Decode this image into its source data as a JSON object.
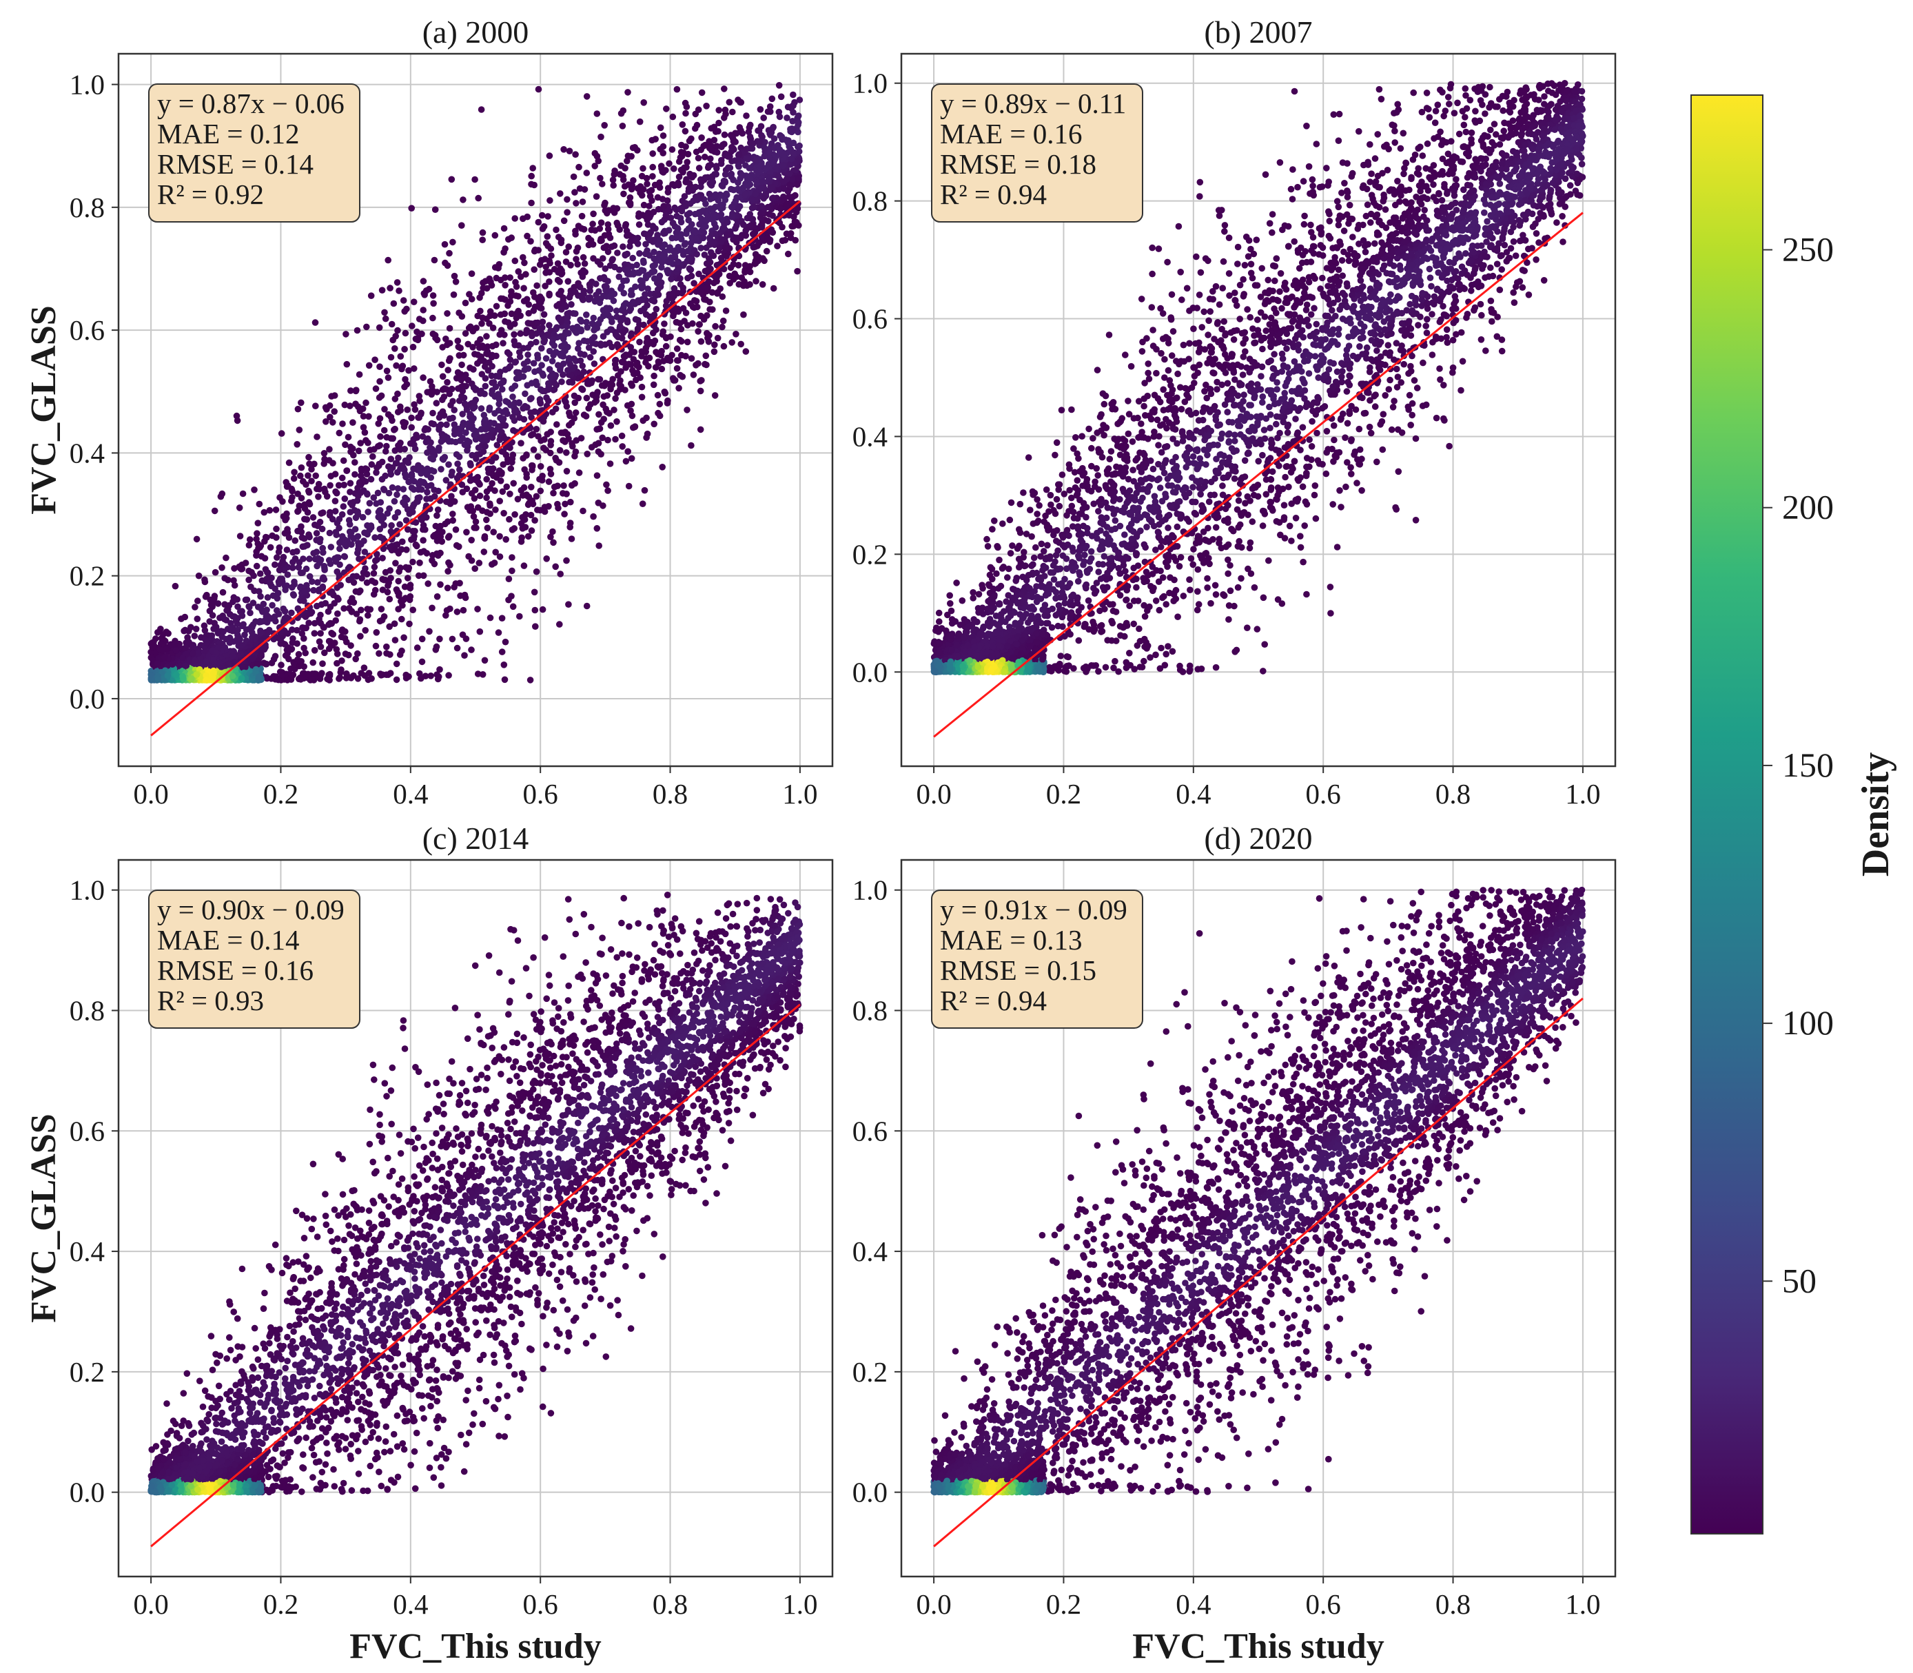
{
  "chart_data": [
    {
      "type": "scatter",
      "title": "(a) 2000",
      "xlabel": "",
      "ylabel": "FVC_GLASS",
      "xlim": [
        -0.05,
        1.05
      ],
      "ylim": [
        -0.11,
        1.05
      ],
      "xticks": [
        0.0,
        0.2,
        0.4,
        0.6,
        0.8,
        1.0
      ],
      "xtick_labels": [
        "0.0",
        "0.2",
        "0.4",
        "0.6",
        "0.8",
        "1.0"
      ],
      "yticks": [
        0.0,
        0.2,
        0.4,
        0.6,
        0.8,
        1.0
      ],
      "ytick_labels": [
        "0.0",
        "0.2",
        "0.4",
        "0.6",
        "0.8",
        "1.0"
      ],
      "grid": true,
      "fit": {
        "slope": 0.87,
        "intercept": -0.06
      },
      "y_floor": 0.03,
      "stats": [
        "y = 0.87x − 0.06",
        "MAE = 0.12",
        "RMSE = 0.14",
        "R² = 0.92"
      ]
    },
    {
      "type": "scatter",
      "title": "(b) 2007",
      "xlabel": "",
      "ylabel": "",
      "xlim": [
        -0.05,
        1.05
      ],
      "ylim": [
        -0.16,
        1.05
      ],
      "xticks": [
        0.0,
        0.2,
        0.4,
        0.6,
        0.8,
        1.0
      ],
      "xtick_labels": [
        "0.0",
        "0.2",
        "0.4",
        "0.6",
        "0.8",
        "1.0"
      ],
      "yticks": [
        0.0,
        0.2,
        0.4,
        0.6,
        0.8,
        1.0
      ],
      "ytick_labels": [
        "0.0",
        "0.2",
        "0.4",
        "0.6",
        "0.8",
        "1.0"
      ],
      "grid": true,
      "fit": {
        "slope": 0.89,
        "intercept": -0.11
      },
      "y_floor": 0.0,
      "stats": [
        "y = 0.89x − 0.11",
        "MAE = 0.16",
        "RMSE = 0.18",
        "R² = 0.94"
      ]
    },
    {
      "type": "scatter",
      "title": "(c) 2014",
      "xlabel": "FVC_This study",
      "ylabel": "FVC_GLASS",
      "xlim": [
        -0.05,
        1.05
      ],
      "ylim": [
        -0.14,
        1.05
      ],
      "xticks": [
        0.0,
        0.2,
        0.4,
        0.6,
        0.8,
        1.0
      ],
      "xtick_labels": [
        "0.0",
        "0.2",
        "0.4",
        "0.6",
        "0.8",
        "1.0"
      ],
      "yticks": [
        0.0,
        0.2,
        0.4,
        0.6,
        0.8,
        1.0
      ],
      "ytick_labels": [
        "0.0",
        "0.2",
        "0.4",
        "0.6",
        "0.8",
        "1.0"
      ],
      "grid": true,
      "fit": {
        "slope": 0.9,
        "intercept": -0.09
      },
      "y_floor": 0.0,
      "stats": [
        "y = 0.90x − 0.09",
        "MAE = 0.14",
        "RMSE = 0.16",
        "R² = 0.93"
      ]
    },
    {
      "type": "scatter",
      "title": "(d) 2020",
      "xlabel": "FVC_This study",
      "ylabel": "",
      "xlim": [
        -0.05,
        1.05
      ],
      "ylim": [
        -0.14,
        1.05
      ],
      "xticks": [
        0.0,
        0.2,
        0.4,
        0.6,
        0.8,
        1.0
      ],
      "xtick_labels": [
        "0.0",
        "0.2",
        "0.4",
        "0.6",
        "0.8",
        "1.0"
      ],
      "yticks": [
        0.0,
        0.2,
        0.4,
        0.6,
        0.8,
        1.0
      ],
      "ytick_labels": [
        "0.0",
        "0.2",
        "0.4",
        "0.6",
        "0.8",
        "1.0"
      ],
      "grid": true,
      "fit": {
        "slope": 0.91,
        "intercept": -0.09
      },
      "y_floor": 0.0,
      "stats": [
        "y = 0.91x − 0.09",
        "MAE = 0.13",
        "RMSE = 0.15",
        "R² = 0.94"
      ]
    }
  ],
  "colorbar": {
    "label": "Density",
    "range": [
      1,
      280
    ],
    "ticks": [
      50,
      100,
      150,
      200,
      250
    ],
    "tick_labels": [
      "50",
      "100",
      "150",
      "200",
      "250"
    ],
    "colormap": "viridis"
  },
  "colors": {
    "fit_line": "#ff1a1a",
    "point_low": "#440154",
    "grid": "#c8c8c8",
    "stats_box": "#f6e0bd",
    "viridis": [
      "#440154",
      "#482878",
      "#3e4989",
      "#31688e",
      "#26828e",
      "#1f9e89",
      "#35b779",
      "#6ece58",
      "#b5de2b",
      "#fde725"
    ]
  }
}
